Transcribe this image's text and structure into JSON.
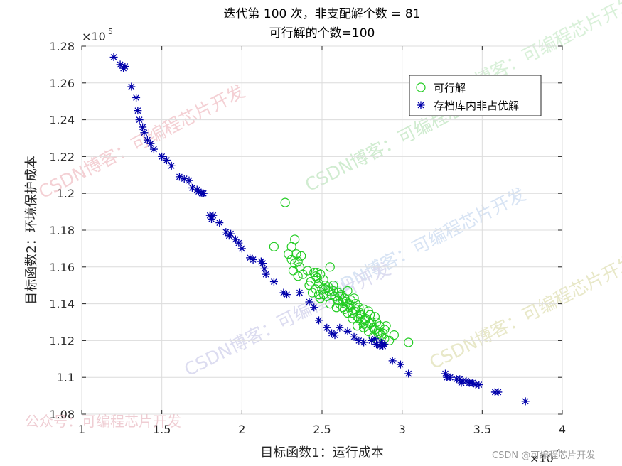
{
  "chart_data": {
    "type": "scatter",
    "title": "迭代第 100 次，非支配解个数 = 81",
    "subtitle": "可行解的个数=100",
    "xlabel": "目标函数1：运行成本",
    "ylabel": "目标函数2：环境保护成本",
    "x_exponent_label": "×10",
    "x_exponent": "4",
    "y_exponent_label": "×10",
    "y_exponent": "5",
    "xlim": [
      1,
      4
    ],
    "ylim": [
      1.08,
      1.28
    ],
    "xticks": [
      1,
      1.5,
      2,
      2.5,
      3,
      3.5,
      4
    ],
    "xtick_labels": [
      "1",
      "1.5",
      "2",
      "2.5",
      "3",
      "3.5",
      "4"
    ],
    "yticks": [
      1.08,
      1.1,
      1.12,
      1.14,
      1.16,
      1.18,
      1.2,
      1.22,
      1.24,
      1.26,
      1.28
    ],
    "ytick_labels": [
      "1.08",
      "1.1",
      "1.12",
      "1.14",
      "1.16",
      "1.18",
      "1.2",
      "1.22",
      "1.24",
      "1.26",
      "1.28"
    ],
    "grid": true,
    "legend_position": "top-right",
    "series": [
      {
        "name": "可行解",
        "marker": "circle",
        "color": "#22cc22",
        "x": [
          2.27,
          2.2,
          2.31,
          2.29,
          2.33,
          2.31,
          2.34,
          2.32,
          2.35,
          2.37,
          2.33,
          2.36,
          2.38,
          2.35,
          2.41,
          2.43,
          2.45,
          2.46,
          2.47,
          2.48,
          2.49,
          2.46,
          2.44,
          2.42,
          2.5,
          2.52,
          2.48,
          2.51,
          2.53,
          2.55,
          2.54,
          2.47,
          2.49,
          2.56,
          2.57,
          2.55,
          2.58,
          2.6,
          2.61,
          2.59,
          2.62,
          2.63,
          2.64,
          2.65,
          2.66,
          2.67,
          2.66,
          2.68,
          2.69,
          2.7,
          2.71,
          2.72,
          2.7,
          2.73,
          2.74,
          2.72,
          2.75,
          2.76,
          2.77,
          2.78,
          2.79,
          2.8,
          2.81,
          2.79,
          2.82,
          2.83,
          2.84,
          2.82,
          2.85,
          2.86,
          2.87,
          2.88,
          2.89,
          2.9,
          2.92,
          2.95,
          3.04,
          2.52,
          2.57,
          2.61,
          2.65,
          2.68,
          2.71,
          2.74,
          2.77,
          2.8,
          2.83,
          2.86,
          2.64,
          2.69,
          2.73,
          2.76,
          2.51,
          2.54,
          2.6,
          2.63,
          2.67,
          2.76,
          2.89,
          2.85
        ],
        "y": [
          1.195,
          1.171,
          1.171,
          1.167,
          1.175,
          1.164,
          1.167,
          1.158,
          1.163,
          1.166,
          1.162,
          1.16,
          1.156,
          1.155,
          1.158,
          1.152,
          1.157,
          1.155,
          1.157,
          1.151,
          1.156,
          1.148,
          1.146,
          1.15,
          1.148,
          1.15,
          1.145,
          1.153,
          1.144,
          1.16,
          1.147,
          1.154,
          1.143,
          1.145,
          1.15,
          1.14,
          1.144,
          1.142,
          1.14,
          1.138,
          1.145,
          1.138,
          1.143,
          1.14,
          1.135,
          1.138,
          1.147,
          1.142,
          1.132,
          1.136,
          1.14,
          1.133,
          1.143,
          1.138,
          1.135,
          1.128,
          1.13,
          1.137,
          1.132,
          1.128,
          1.136,
          1.134,
          1.13,
          1.125,
          1.127,
          1.133,
          1.13,
          1.122,
          1.125,
          1.128,
          1.123,
          1.124,
          1.126,
          1.128,
          1.12,
          1.123,
          1.119,
          1.148,
          1.147,
          1.144,
          1.141,
          1.139,
          1.137,
          1.134,
          1.131,
          1.129,
          1.126,
          1.124,
          1.137,
          1.135,
          1.132,
          1.129,
          1.145,
          1.149,
          1.146,
          1.142,
          1.14,
          1.127,
          1.121,
          1.124
        ]
      },
      {
        "name": "存档库内非占优解",
        "marker": "star",
        "color": "#0000aa",
        "x": [
          1.2,
          1.24,
          1.26,
          1.27,
          1.31,
          1.34,
          1.35,
          1.36,
          1.38,
          1.39,
          1.41,
          1.43,
          1.45,
          1.5,
          1.53,
          1.56,
          1.61,
          1.64,
          1.67,
          1.69,
          1.72,
          1.73,
          1.75,
          1.76,
          1.8,
          1.81,
          1.82,
          1.86,
          1.9,
          1.92,
          1.93,
          1.96,
          1.98,
          2.0,
          2.05,
          2.07,
          2.12,
          2.14,
          2.13,
          2.15,
          2.2,
          2.26,
          2.28,
          2.36,
          2.42,
          2.45,
          2.48,
          2.53,
          2.56,
          2.58,
          2.61,
          2.66,
          2.7,
          2.73,
          2.76,
          2.81,
          2.84,
          2.86,
          2.87,
          2.88,
          2.94,
          2.99,
          3.04,
          3.27,
          3.28,
          3.3,
          3.34,
          3.37,
          3.38,
          3.4,
          3.42,
          3.43,
          3.44,
          3.46,
          3.48,
          3.58,
          3.6,
          3.77,
          2.83,
          2.89,
          3.36
        ],
        "y": [
          1.274,
          1.27,
          1.268,
          1.269,
          1.258,
          1.252,
          1.245,
          1.24,
          1.236,
          1.233,
          1.229,
          1.227,
          1.224,
          1.22,
          1.218,
          1.215,
          1.209,
          1.208,
          1.207,
          1.203,
          1.202,
          1.201,
          1.2,
          1.2,
          1.188,
          1.186,
          1.188,
          1.184,
          1.179,
          1.177,
          1.178,
          1.175,
          1.173,
          1.17,
          1.165,
          1.164,
          1.163,
          1.159,
          1.162,
          1.156,
          1.152,
          1.146,
          1.145,
          1.146,
          1.141,
          1.138,
          1.131,
          1.127,
          1.124,
          1.123,
          1.127,
          1.125,
          1.122,
          1.12,
          1.119,
          1.12,
          1.118,
          1.117,
          1.119,
          1.117,
          1.109,
          1.107,
          1.102,
          1.102,
          1.1,
          1.1,
          1.099,
          1.097,
          1.098,
          1.098,
          1.097,
          1.097,
          1.097,
          1.096,
          1.096,
          1.092,
          1.092,
          1.087,
          1.121,
          1.118,
          1.099
        ]
      }
    ]
  },
  "watermarks": [
    "CSDN博客：可编程芯片开发",
    "CSDN博客：可编程芯片开发",
    "CSDN博客：可编程芯片开发",
    "CSDN博客：可编程芯片开发",
    "CSDN博客：可编程芯片开发",
    "CSDN博客：可编程芯片开发"
  ],
  "footer_watermark": "公众号：可编程芯片开发",
  "csdn_credit": "CSDN @可编程芯片开发"
}
